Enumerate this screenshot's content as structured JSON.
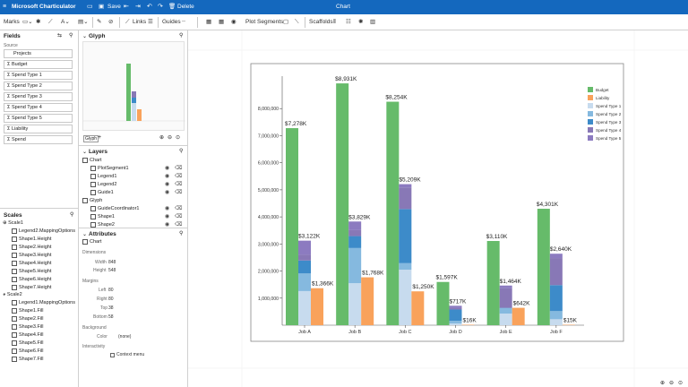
{
  "titlebar": {
    "app_name": "Microsoft Charticulator",
    "save": "Save",
    "delete": "Delete",
    "title": "Chart"
  },
  "toolbar": {
    "marks": "Marks",
    "links": "Links",
    "guides": "Guides",
    "plot_segments": "Plot Segments",
    "scaffolds": "Scaffolds"
  },
  "fields": {
    "title": "Fields",
    "source": "Source",
    "table": "Projects",
    "items": [
      "Budget",
      "Spend Type 1",
      "Spend Type 2",
      "Spend Type 3",
      "Spend Type 4",
      "Spend Type 5",
      "Liability",
      "Spend"
    ]
  },
  "scales": {
    "title": "Scales",
    "scale1": "Scale1",
    "scale1_items": [
      "Legend2.MappingOptions",
      "Shape1.Height",
      "Shape2.Height",
      "Shape3.Height",
      "Shape4.Height",
      "Shape5.Height",
      "Shape6.Height",
      "Shape7.Height"
    ],
    "scale2": "Scale2",
    "scale2_items": [
      "Legend1.MappingOptions",
      "Shape1.Fill",
      "Shape2.Fill",
      "Shape3.Fill",
      "Shape4.Fill",
      "Shape5.Fill",
      "Shape6.Fill",
      "Shape7.Fill"
    ]
  },
  "glyph": {
    "title": "Glyph",
    "tab": "Glyph",
    "add": "+"
  },
  "layers": {
    "title": "Layers",
    "items": [
      "Chart",
      "PlotSegment1",
      "Legend1",
      "Legend2",
      "Guide1",
      "Glyph",
      "GuideCoordinator1",
      "Shape1",
      "Shape2"
    ]
  },
  "attributes": {
    "title": "Attributes",
    "target": "Chart",
    "dimensions": "Dimensions",
    "width_label": "Width",
    "width": "848",
    "height_label": "Height",
    "height": "548",
    "margins": "Margins",
    "left_label": "Left",
    "left": "80",
    "right_label": "Right",
    "right": "80",
    "top_label": "Top",
    "top": "38",
    "bottom_label": "Bottom",
    "bottom": "58",
    "background": "Background",
    "color_label": "Color",
    "color": "(none)",
    "interactivity": "Interactivity",
    "context_menu": "Context menu"
  },
  "chart_data": {
    "type": "bar",
    "categories": [
      "Job A",
      "Job B",
      "Job C",
      "Job D",
      "Job E",
      "Job F"
    ],
    "yticks": [
      "1,000,000",
      "2,000,000",
      "3,000,000",
      "4,000,000",
      "5,000,000",
      "6,000,000",
      "7,000,000",
      "8,000,000"
    ],
    "ylim": [
      0,
      9000000
    ],
    "legend": [
      "Budget",
      "Liability",
      "Spend Type 1",
      "Spend Type 2",
      "Spend Type 3",
      "Spend Type 4",
      "Spend Type 5"
    ],
    "colors": [
      "#66bb6a",
      "#f9a25b",
      "#c7dbee",
      "#85b9df",
      "#3d8bc9",
      "#8878b6",
      "#8c7bc0"
    ],
    "budget": [
      7278000,
      8931000,
      8254000,
      1597000,
      3110000,
      4301000
    ],
    "budget_labels": [
      "$7,278K",
      "$8,931K",
      "$8,254K",
      "$1,597K",
      "$3,110K",
      "$4,301K"
    ],
    "spend_total": [
      3122000,
      3829000,
      5209000,
      717000,
      1464000,
      2640000
    ],
    "spend_labels": [
      "$3,122K",
      "$3,829K",
      "$5,209K",
      "$717K",
      "$1,464K",
      "$2,640K"
    ],
    "spend_types": [
      [
        1260000,
        650000,
        480000,
        210000,
        522000
      ],
      [
        1550000,
        1300000,
        440000,
        220000,
        319000
      ],
      [
        2050000,
        240000,
        2000000,
        800000,
        119000
      ],
      [
        60000,
        100000,
        420000,
        50000,
        87000
      ],
      [
        430000,
        200000,
        10000,
        720000,
        104000
      ],
      [
        220000,
        300000,
        960000,
        1000000,
        160000
      ]
    ],
    "liability": [
      1366000,
      1768000,
      1250000,
      16000,
      642000,
      15000
    ],
    "liability_labels": [
      "$1,366K",
      "$1,768K",
      "$1,250K",
      "$16K",
      "$642K",
      "$15K"
    ]
  }
}
